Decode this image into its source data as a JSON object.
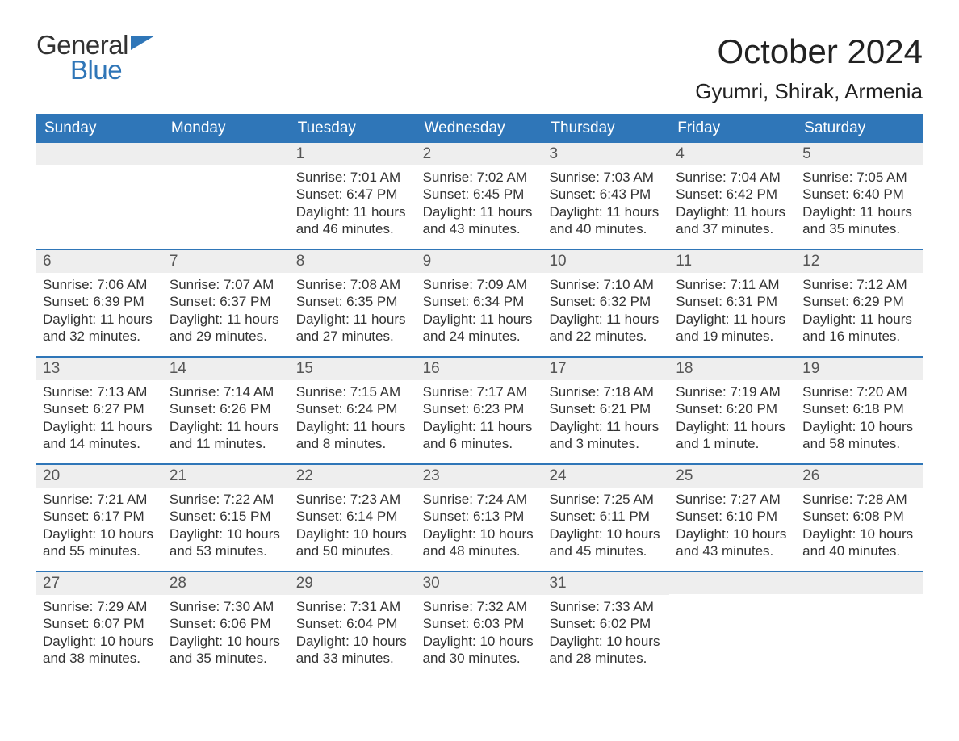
{
  "logo": {
    "text_general": "General",
    "text_blue": "Blue",
    "general_color": "#333333",
    "blue_color": "#2f76b8",
    "flag_color": "#2f76b8"
  },
  "title": {
    "main": "October 2024",
    "sub": "Gyumri, Shirak, Armenia",
    "main_fontsize": 42,
    "sub_fontsize": 26
  },
  "colors": {
    "header_bg": "#2f76b8",
    "header_text": "#ffffff",
    "daynum_bg": "#eeeeee",
    "week_divider": "#2f76b8",
    "body_text": "#333333",
    "page_bg": "#ffffff"
  },
  "calendar": {
    "type": "table",
    "columns": [
      "Sunday",
      "Monday",
      "Tuesday",
      "Wednesday",
      "Thursday",
      "Friday",
      "Saturday"
    ],
    "weeks": [
      [
        null,
        null,
        {
          "day": "1",
          "sunrise": "Sunrise: 7:01 AM",
          "sunset": "Sunset: 6:47 PM",
          "daylight": "Daylight: 11 hours and 46 minutes."
        },
        {
          "day": "2",
          "sunrise": "Sunrise: 7:02 AM",
          "sunset": "Sunset: 6:45 PM",
          "daylight": "Daylight: 11 hours and 43 minutes."
        },
        {
          "day": "3",
          "sunrise": "Sunrise: 7:03 AM",
          "sunset": "Sunset: 6:43 PM",
          "daylight": "Daylight: 11 hours and 40 minutes."
        },
        {
          "day": "4",
          "sunrise": "Sunrise: 7:04 AM",
          "sunset": "Sunset: 6:42 PM",
          "daylight": "Daylight: 11 hours and 37 minutes."
        },
        {
          "day": "5",
          "sunrise": "Sunrise: 7:05 AM",
          "sunset": "Sunset: 6:40 PM",
          "daylight": "Daylight: 11 hours and 35 minutes."
        }
      ],
      [
        {
          "day": "6",
          "sunrise": "Sunrise: 7:06 AM",
          "sunset": "Sunset: 6:39 PM",
          "daylight": "Daylight: 11 hours and 32 minutes."
        },
        {
          "day": "7",
          "sunrise": "Sunrise: 7:07 AM",
          "sunset": "Sunset: 6:37 PM",
          "daylight": "Daylight: 11 hours and 29 minutes."
        },
        {
          "day": "8",
          "sunrise": "Sunrise: 7:08 AM",
          "sunset": "Sunset: 6:35 PM",
          "daylight": "Daylight: 11 hours and 27 minutes."
        },
        {
          "day": "9",
          "sunrise": "Sunrise: 7:09 AM",
          "sunset": "Sunset: 6:34 PM",
          "daylight": "Daylight: 11 hours and 24 minutes."
        },
        {
          "day": "10",
          "sunrise": "Sunrise: 7:10 AM",
          "sunset": "Sunset: 6:32 PM",
          "daylight": "Daylight: 11 hours and 22 minutes."
        },
        {
          "day": "11",
          "sunrise": "Sunrise: 7:11 AM",
          "sunset": "Sunset: 6:31 PM",
          "daylight": "Daylight: 11 hours and 19 minutes."
        },
        {
          "day": "12",
          "sunrise": "Sunrise: 7:12 AM",
          "sunset": "Sunset: 6:29 PM",
          "daylight": "Daylight: 11 hours and 16 minutes."
        }
      ],
      [
        {
          "day": "13",
          "sunrise": "Sunrise: 7:13 AM",
          "sunset": "Sunset: 6:27 PM",
          "daylight": "Daylight: 11 hours and 14 minutes."
        },
        {
          "day": "14",
          "sunrise": "Sunrise: 7:14 AM",
          "sunset": "Sunset: 6:26 PM",
          "daylight": "Daylight: 11 hours and 11 minutes."
        },
        {
          "day": "15",
          "sunrise": "Sunrise: 7:15 AM",
          "sunset": "Sunset: 6:24 PM",
          "daylight": "Daylight: 11 hours and 8 minutes."
        },
        {
          "day": "16",
          "sunrise": "Sunrise: 7:17 AM",
          "sunset": "Sunset: 6:23 PM",
          "daylight": "Daylight: 11 hours and 6 minutes."
        },
        {
          "day": "17",
          "sunrise": "Sunrise: 7:18 AM",
          "sunset": "Sunset: 6:21 PM",
          "daylight": "Daylight: 11 hours and 3 minutes."
        },
        {
          "day": "18",
          "sunrise": "Sunrise: 7:19 AM",
          "sunset": "Sunset: 6:20 PM",
          "daylight": "Daylight: 11 hours and 1 minute."
        },
        {
          "day": "19",
          "sunrise": "Sunrise: 7:20 AM",
          "sunset": "Sunset: 6:18 PM",
          "daylight": "Daylight: 10 hours and 58 minutes."
        }
      ],
      [
        {
          "day": "20",
          "sunrise": "Sunrise: 7:21 AM",
          "sunset": "Sunset: 6:17 PM",
          "daylight": "Daylight: 10 hours and 55 minutes."
        },
        {
          "day": "21",
          "sunrise": "Sunrise: 7:22 AM",
          "sunset": "Sunset: 6:15 PM",
          "daylight": "Daylight: 10 hours and 53 minutes."
        },
        {
          "day": "22",
          "sunrise": "Sunrise: 7:23 AM",
          "sunset": "Sunset: 6:14 PM",
          "daylight": "Daylight: 10 hours and 50 minutes."
        },
        {
          "day": "23",
          "sunrise": "Sunrise: 7:24 AM",
          "sunset": "Sunset: 6:13 PM",
          "daylight": "Daylight: 10 hours and 48 minutes."
        },
        {
          "day": "24",
          "sunrise": "Sunrise: 7:25 AM",
          "sunset": "Sunset: 6:11 PM",
          "daylight": "Daylight: 10 hours and 45 minutes."
        },
        {
          "day": "25",
          "sunrise": "Sunrise: 7:27 AM",
          "sunset": "Sunset: 6:10 PM",
          "daylight": "Daylight: 10 hours and 43 minutes."
        },
        {
          "day": "26",
          "sunrise": "Sunrise: 7:28 AM",
          "sunset": "Sunset: 6:08 PM",
          "daylight": "Daylight: 10 hours and 40 minutes."
        }
      ],
      [
        {
          "day": "27",
          "sunrise": "Sunrise: 7:29 AM",
          "sunset": "Sunset: 6:07 PM",
          "daylight": "Daylight: 10 hours and 38 minutes."
        },
        {
          "day": "28",
          "sunrise": "Sunrise: 7:30 AM",
          "sunset": "Sunset: 6:06 PM",
          "daylight": "Daylight: 10 hours and 35 minutes."
        },
        {
          "day": "29",
          "sunrise": "Sunrise: 7:31 AM",
          "sunset": "Sunset: 6:04 PM",
          "daylight": "Daylight: 10 hours and 33 minutes."
        },
        {
          "day": "30",
          "sunrise": "Sunrise: 7:32 AM",
          "sunset": "Sunset: 6:03 PM",
          "daylight": "Daylight: 10 hours and 30 minutes."
        },
        {
          "day": "31",
          "sunrise": "Sunrise: 7:33 AM",
          "sunset": "Sunset: 6:02 PM",
          "daylight": "Daylight: 10 hours and 28 minutes."
        },
        null,
        null
      ]
    ]
  }
}
